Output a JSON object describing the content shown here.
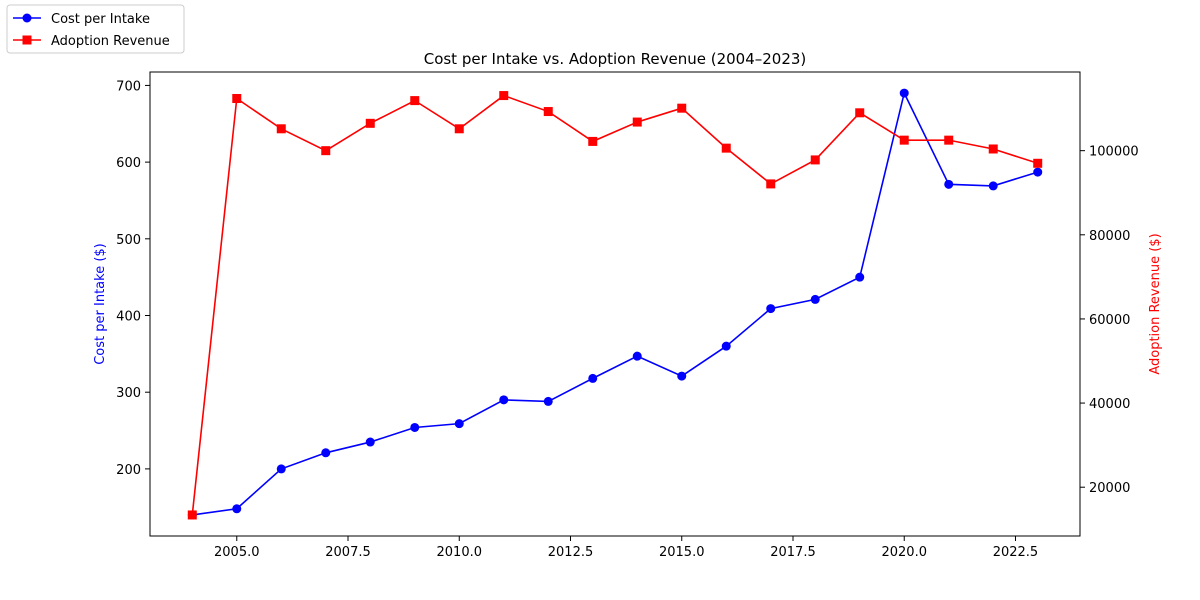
{
  "chart_data": {
    "type": "line",
    "title": "Cost per Intake vs. Adoption Revenue (2004–2023)",
    "x": [
      2004,
      2005,
      2006,
      2007,
      2008,
      2009,
      2010,
      2011,
      2012,
      2013,
      2014,
      2015,
      2016,
      2017,
      2018,
      2019,
      2020,
      2021,
      2022,
      2023
    ],
    "xlim": [
      2003.05,
      2023.95
    ],
    "x_ticks": [
      2005.0,
      2007.5,
      2010.0,
      2012.5,
      2015.0,
      2017.5,
      2020.0,
      2022.5
    ],
    "x_tick_labels": [
      "2005.0",
      "2007.5",
      "2010.0",
      "2012.5",
      "2015.0",
      "2017.5",
      "2020.0",
      "2022.5"
    ],
    "grid": false,
    "legend_placement": "top-left (outside plot)",
    "left_axis": {
      "label": "Cost per Intake ($)",
      "color": "#0000ff",
      "ylim": [
        112.5,
        717.5
      ],
      "ticks": [
        200,
        300,
        400,
        500,
        600,
        700
      ],
      "tick_labels": [
        "200",
        "300",
        "400",
        "500",
        "600",
        "700"
      ]
    },
    "right_axis": {
      "label": "Adoption Revenue ($)",
      "color": "#ff0000",
      "ylim": [
        8400,
        118700
      ],
      "ticks": [
        20000,
        40000,
        60000,
        80000,
        100000
      ],
      "tick_labels": [
        "20000",
        "40000",
        "60000",
        "80000",
        "100000"
      ]
    },
    "series": [
      {
        "name": "Cost per Intake",
        "axis": "left",
        "color": "#0000ff",
        "marker": "circle",
        "values": [
          140,
          148,
          200,
          221,
          235,
          254,
          259,
          290,
          288,
          318,
          347,
          321,
          360,
          409,
          421,
          450,
          690,
          571,
          569,
          587
        ]
      },
      {
        "name": "Adoption Revenue",
        "axis": "right",
        "color": "#ff0000",
        "marker": "square",
        "values": [
          13400,
          112400,
          105200,
          100000,
          106500,
          111900,
          105200,
          113100,
          109300,
          102200,
          106800,
          110100,
          100600,
          92100,
          97800,
          109000,
          102500,
          102500,
          100400,
          97000
        ]
      }
    ]
  }
}
